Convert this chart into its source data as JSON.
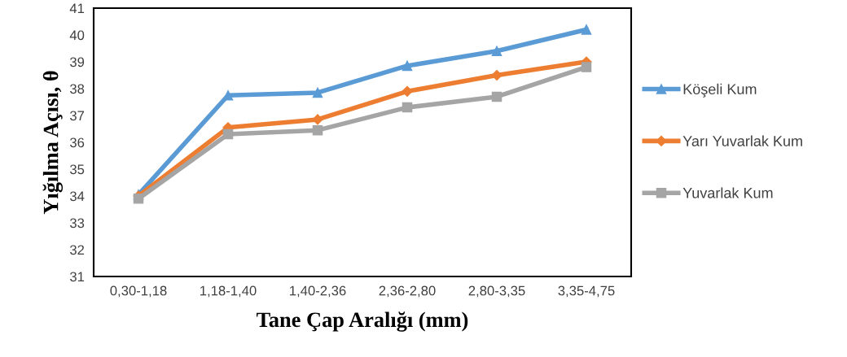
{
  "chart_data": {
    "type": "line",
    "xlabel": "Tane Çap Aralığı (mm)",
    "ylabel": "Yığılma Açısı, θ",
    "categories": [
      "0,30-1,18",
      "1,18-1,40",
      "1,40-2,36",
      "2,36-2,80",
      "2,80-3,35",
      "3,35-4,75"
    ],
    "series": [
      {
        "name": "Köşeli Kum",
        "color": "#5b9bd5",
        "marker": "triangle",
        "values": [
          34.05,
          37.75,
          37.85,
          38.85,
          39.4,
          40.2
        ]
      },
      {
        "name": "Yarı Yuvarlak Kum",
        "color": "#ed7d31",
        "marker": "diamond",
        "values": [
          34.0,
          36.55,
          36.85,
          37.9,
          38.5,
          39.0
        ]
      },
      {
        "name": "Yuvarlak Kum",
        "color": "#a5a5a5",
        "marker": "square",
        "values": [
          33.9,
          36.3,
          36.45,
          37.3,
          37.7,
          38.8
        ]
      }
    ],
    "ylim": [
      31,
      41
    ],
    "yticks": [
      31,
      32,
      33,
      34,
      35,
      36,
      37,
      38,
      39,
      40,
      41
    ],
    "grid": false,
    "legend": "right"
  }
}
